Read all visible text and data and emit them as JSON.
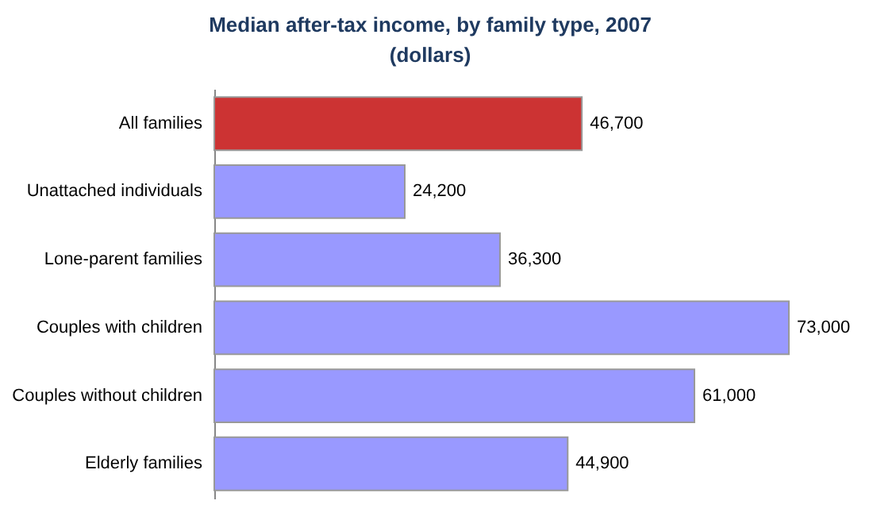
{
  "chart_data": {
    "type": "bar",
    "orientation": "horizontal",
    "title": "Median after-tax income, by family type, 2007",
    "subtitle": "(dollars)",
    "categories": [
      "All families",
      "Unattached individuals",
      "Lone-parent families",
      "Couples with children",
      "Couples without children",
      "Elderly families"
    ],
    "values": [
      46700,
      24200,
      36300,
      73000,
      61000,
      44900
    ],
    "colors": [
      "#cc3333",
      "#9999ff",
      "#9999ff",
      "#9999ff",
      "#9999ff",
      "#9999ff"
    ],
    "value_labels": [
      "46,700",
      "24,200",
      "36,300",
      "73,000",
      "61,000",
      "44,900"
    ]
  }
}
